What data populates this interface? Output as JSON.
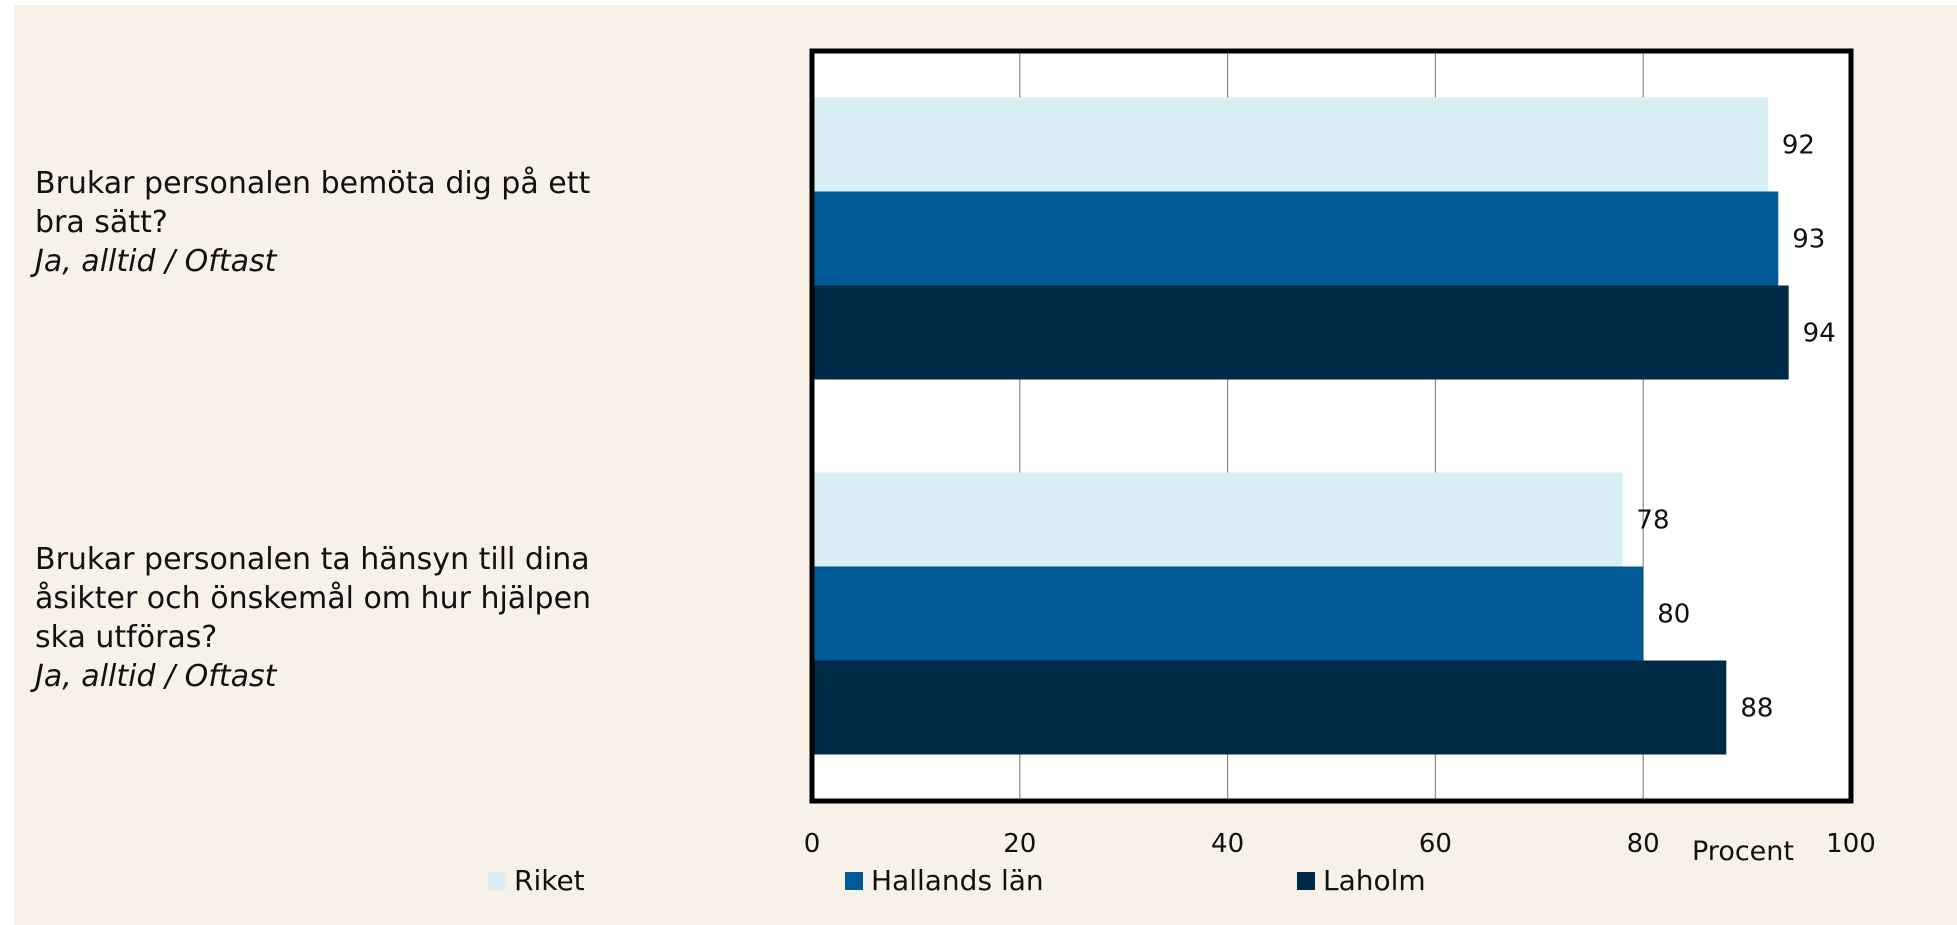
{
  "chart_data": {
    "type": "bar",
    "orientation": "horizontal",
    "categories": [
      {
        "question": "Brukar personalen bemöta dig på ett bra sätt?",
        "answer": "Ja, alltid / Oftast"
      },
      {
        "question": "Brukar personalen ta hänsyn till dina åsikter och önskemål om hur hjälpen ska utföras?",
        "answer": "Ja, alltid / Oftast"
      }
    ],
    "series": [
      {
        "name": "Riket",
        "color": "#daeef5",
        "values": [
          92,
          78
        ]
      },
      {
        "name": "Hallands län",
        "color": "#005a95",
        "values": [
          93,
          80
        ]
      },
      {
        "name": "Laholm",
        "color": "#002a45",
        "values": [
          94,
          88
        ]
      }
    ],
    "xlim": [
      0,
      100
    ],
    "xticks": [
      "0",
      "20",
      "40",
      "60",
      "80",
      "100"
    ],
    "xlabel": "Procent",
    "grid": true,
    "legend_position": "bottom"
  }
}
